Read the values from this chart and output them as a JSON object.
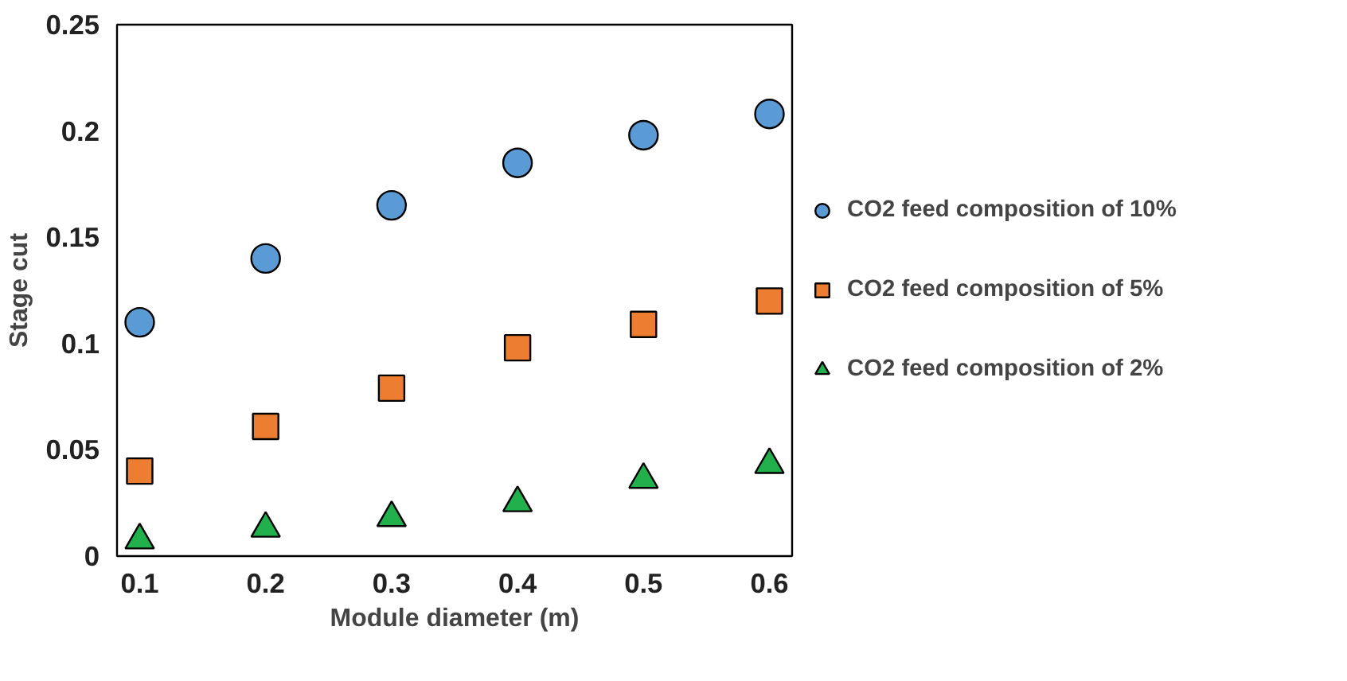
{
  "chart_data": {
    "type": "scatter",
    "xlabel": "Module diameter (m)",
    "ylabel": "Stage cut",
    "x": [
      0.1,
      0.2,
      0.3,
      0.4,
      0.5,
      0.6
    ],
    "series": [
      {
        "name": "CO2 feed composition of 10%",
        "color": "#5b9bd5",
        "marker": "circle",
        "values": [
          0.11,
          0.14,
          0.165,
          0.185,
          0.198,
          0.208
        ]
      },
      {
        "name": "CO2 feed composition of 5%",
        "color": "#ed7d31",
        "marker": "square",
        "values": [
          0.04,
          0.061,
          0.079,
          0.098,
          0.109,
          0.12
        ]
      },
      {
        "name": "CO2 feed composition of 2%",
        "color": "#21b04b",
        "marker": "triangle",
        "values": [
          0.0075,
          0.013,
          0.018,
          0.025,
          0.036,
          0.043
        ]
      }
    ],
    "xlim": [
      0.082,
      0.618
    ],
    "xticks": [
      0.1,
      0.2,
      0.3,
      0.4,
      0.5,
      0.6
    ],
    "ylim": [
      0,
      0.25
    ],
    "yticks": [
      0,
      0.05,
      0.1,
      0.15,
      0.2,
      0.25
    ],
    "grid": false,
    "legend": "right"
  }
}
